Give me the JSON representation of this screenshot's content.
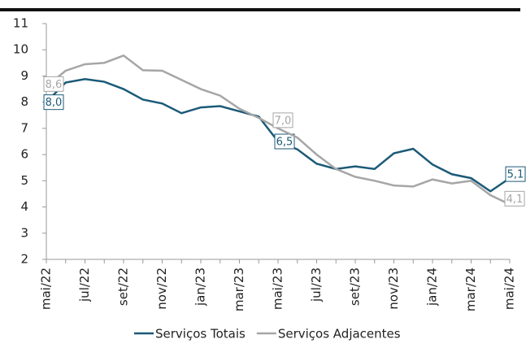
{
  "chart_data": {
    "type": "line",
    "categories": [
      "mai/22",
      null,
      "jul/22",
      null,
      "set/22",
      null,
      "nov/22",
      null,
      "jan/23",
      null,
      "mar/23",
      null,
      "mai/23",
      null,
      "jul/23",
      null,
      "set/23",
      null,
      "nov/23",
      null,
      "jan/24",
      null,
      "mar/24",
      null,
      "mai/24"
    ],
    "series": [
      {
        "name": "Serviços Totais",
        "color": "#1b5a78",
        "values": [
          8.0,
          8.75,
          8.88,
          8.78,
          8.5,
          8.1,
          7.95,
          7.58,
          7.8,
          7.85,
          7.65,
          7.45,
          6.5,
          6.2,
          5.65,
          5.45,
          5.55,
          5.45,
          6.05,
          6.22,
          5.62,
          5.25,
          5.1,
          4.6,
          5.1
        ],
        "value_labels": [
          "8,0",
          null,
          null,
          null,
          null,
          null,
          null,
          null,
          null,
          null,
          null,
          null,
          "6,5",
          null,
          null,
          null,
          null,
          null,
          null,
          null,
          null,
          null,
          null,
          null,
          "5,1"
        ]
      },
      {
        "name": "Serviços Adjacentes",
        "color": "#a6a6a6",
        "values": [
          8.6,
          9.2,
          9.45,
          9.5,
          9.78,
          9.22,
          9.2,
          8.85,
          8.5,
          8.25,
          7.75,
          7.4,
          7.0,
          6.65,
          6.0,
          5.45,
          5.15,
          5.0,
          4.82,
          4.78,
          5.05,
          4.9,
          5.0,
          4.45,
          4.1
        ],
        "value_labels": [
          "8,6",
          null,
          null,
          null,
          null,
          null,
          null,
          null,
          null,
          null,
          null,
          null,
          "7,0",
          null,
          null,
          null,
          null,
          null,
          null,
          null,
          null,
          null,
          null,
          null,
          "4,1"
        ]
      }
    ],
    "ylim": [
      2,
      11
    ],
    "yticks": [
      2,
      3,
      4,
      5,
      6,
      7,
      8,
      9,
      10,
      11
    ],
    "grid": false,
    "legend": "bottom"
  }
}
